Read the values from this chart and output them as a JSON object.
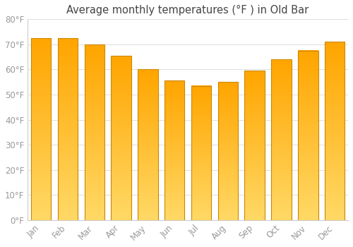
{
  "title": "Average monthly temperatures (°F ) in Old Bar",
  "months": [
    "Jan",
    "Feb",
    "Mar",
    "Apr",
    "May",
    "Jun",
    "Jul",
    "Aug",
    "Sep",
    "Oct",
    "Nov",
    "Dec"
  ],
  "values": [
    72.5,
    72.5,
    70.0,
    65.5,
    60.0,
    55.5,
    53.5,
    55.0,
    59.5,
    64.0,
    67.5,
    71.0
  ],
  "bar_color_top": "#FFA500",
  "bar_color_bottom": "#FFD966",
  "bar_edge_color": "#CC8800",
  "background_color": "#FFFFFF",
  "plot_bg_color": "#FFFFFF",
  "grid_color": "#DDDDDD",
  "ylim": [
    0,
    80
  ],
  "ytick_step": 10,
  "title_fontsize": 10.5,
  "tick_fontsize": 8.5,
  "tick_color": "#999999",
  "title_color": "#444444",
  "spine_color": "#CCCCCC",
  "bar_width": 0.75
}
